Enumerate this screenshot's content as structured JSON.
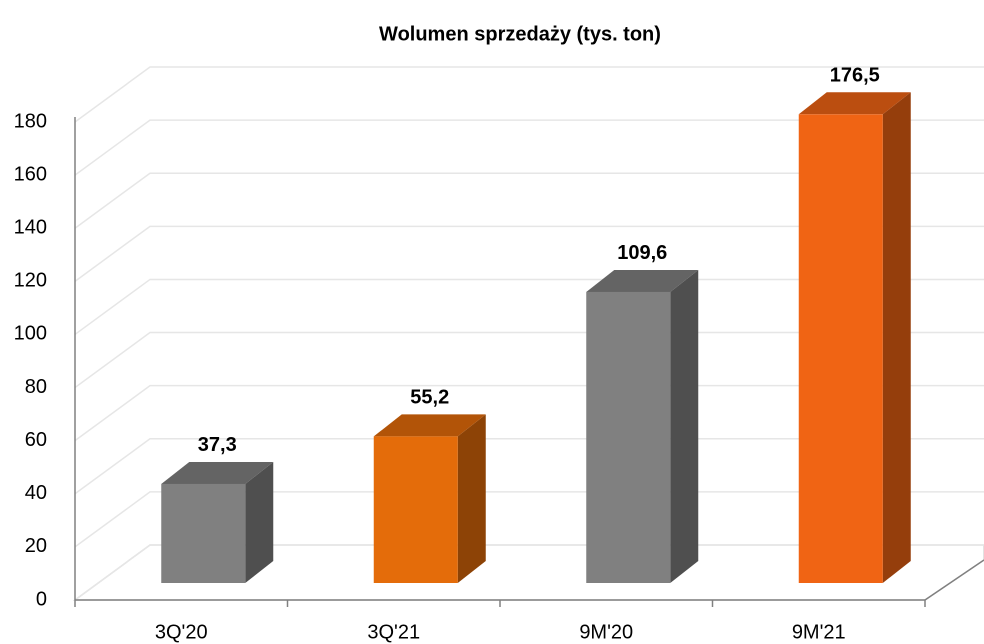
{
  "chart_data": {
    "type": "bar3d",
    "title": "Wolumen sprzedaży  (tys. ton)",
    "categories": [
      "3Q'20",
      "3Q'21",
      "9M'20",
      "9M'21"
    ],
    "values": [
      37.3,
      55.2,
      109.6,
      176.5
    ],
    "value_labels": [
      "37,3",
      "55,2",
      "109,6",
      "176,5"
    ],
    "colors": [
      "#808080",
      "#e46c0a",
      "#808080",
      "#f06414"
    ],
    "ylim": [
      0,
      180
    ],
    "yticks": [
      0,
      20,
      40,
      60,
      80,
      100,
      120,
      140,
      160,
      180
    ],
    "grid": true
  }
}
